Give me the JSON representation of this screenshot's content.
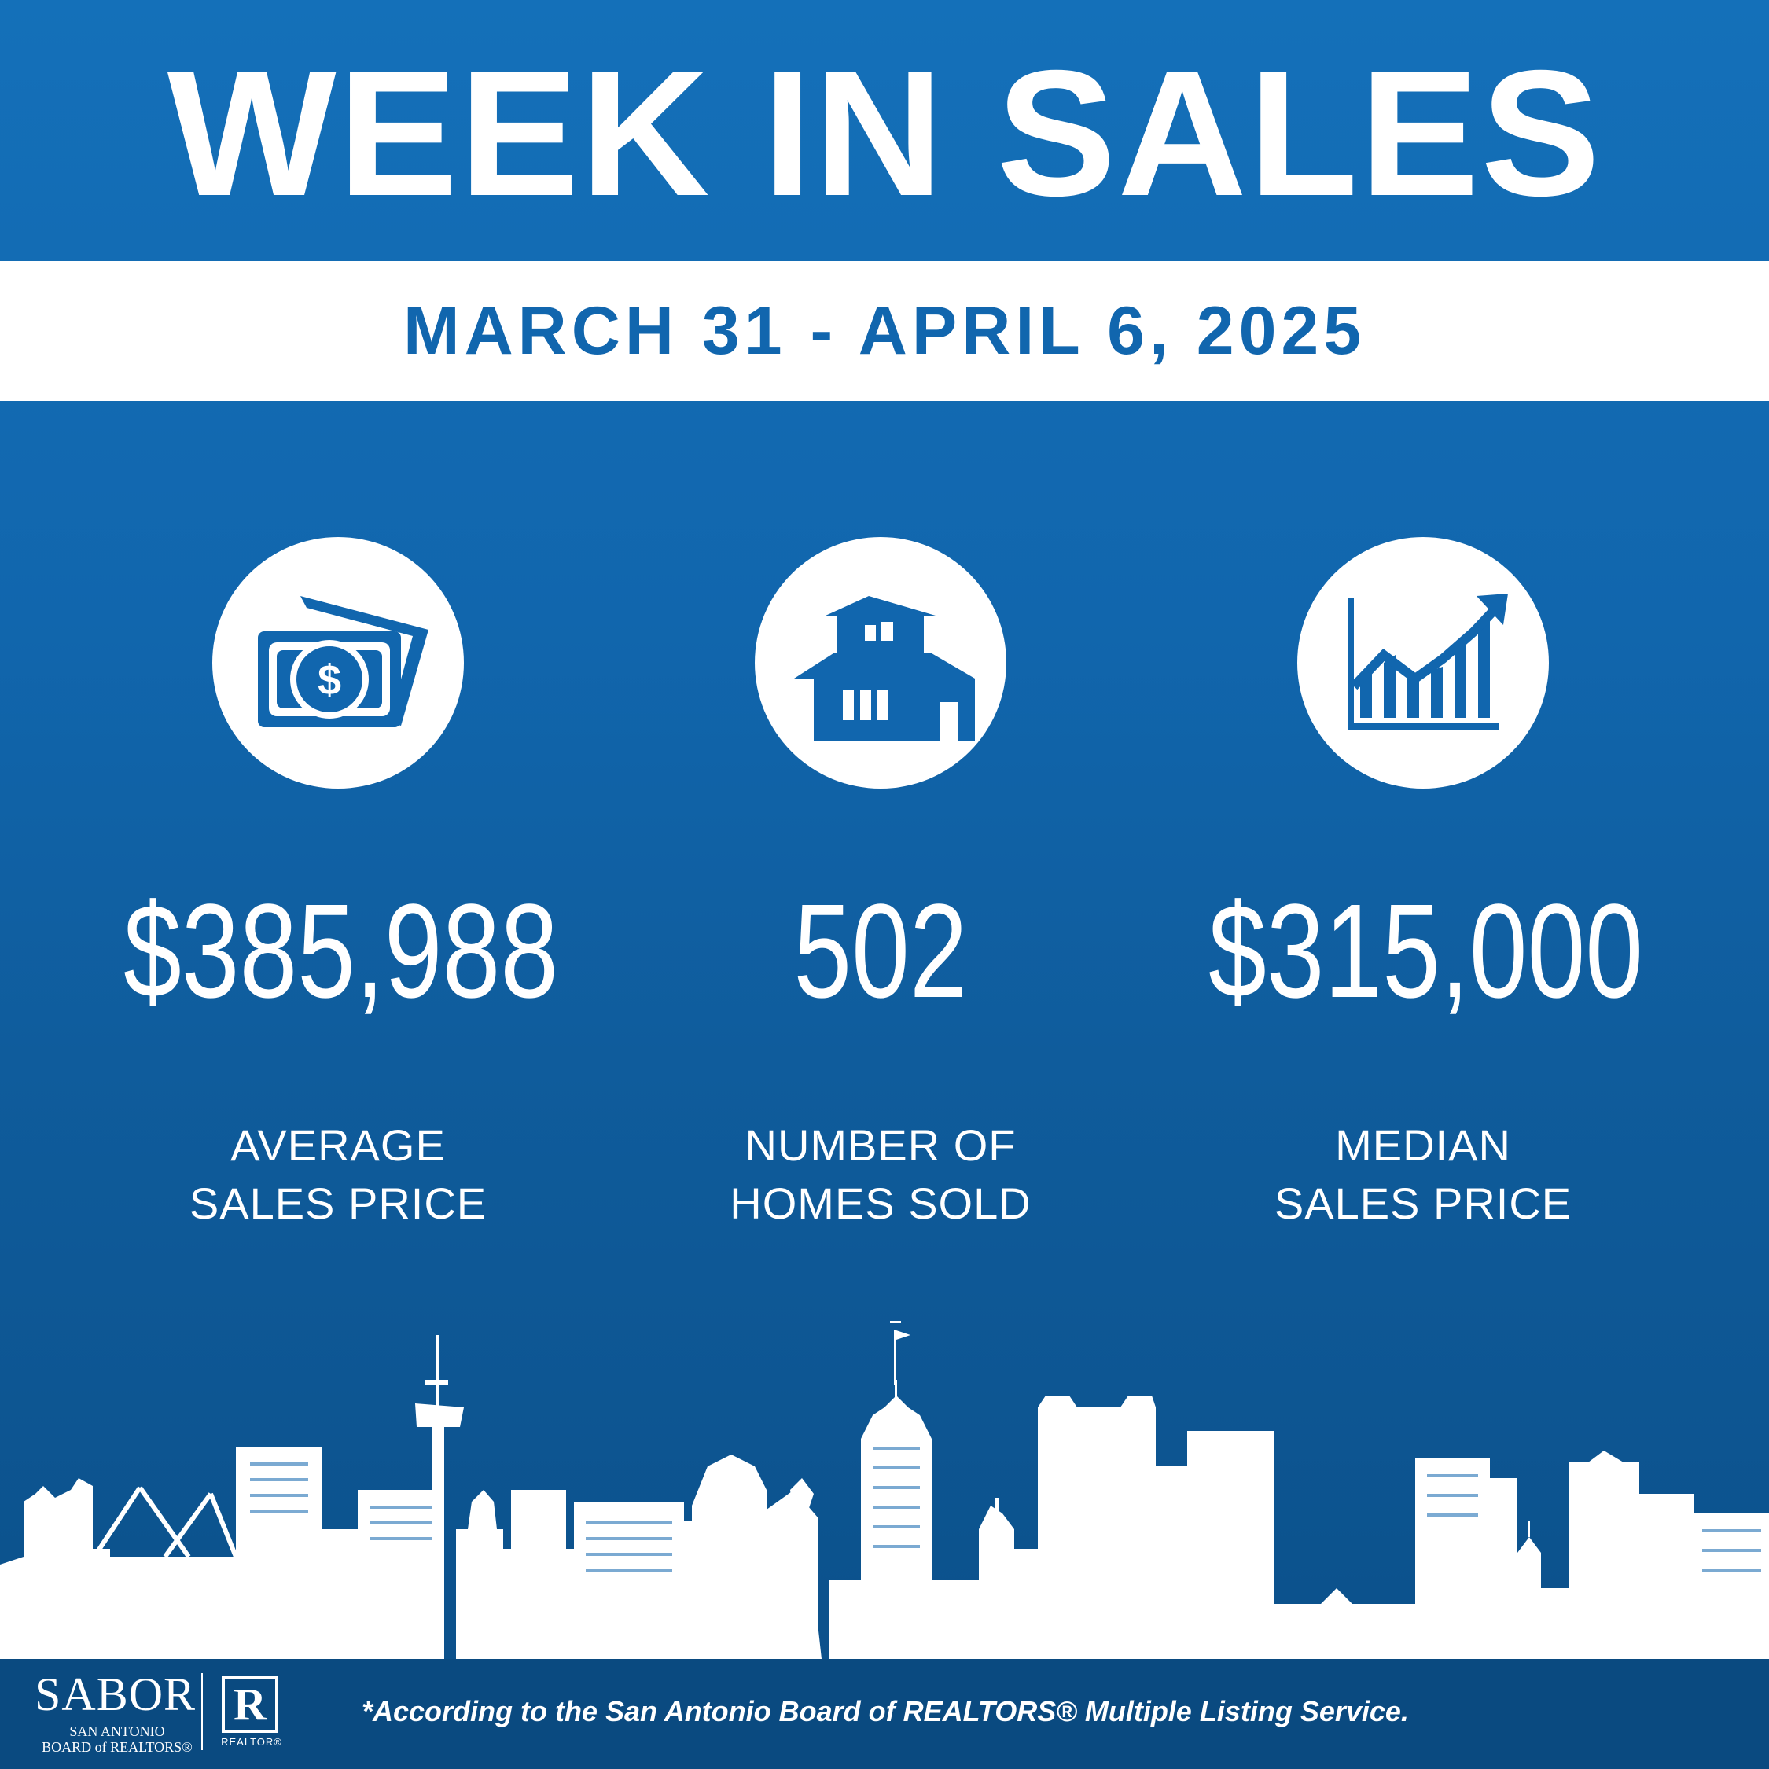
{
  "header": {
    "title": "WEEK IN SALES",
    "date_range": "MARCH 31 - APRIL 6, 2025"
  },
  "stats": [
    {
      "icon": "money-icon",
      "value": "$385,988",
      "label_line1": "AVERAGE",
      "label_line2": "SALES PRICE"
    },
    {
      "icon": "house-icon",
      "value": "502",
      "label_line1": "NUMBER OF",
      "label_line2": "HOMES SOLD"
    },
    {
      "icon": "growth-chart-icon",
      "value": "$315,000",
      "label_line1": "MEDIAN",
      "label_line2": "SALES PRICE"
    }
  ],
  "footer": {
    "logo_word": "SABOR",
    "logo_sub_line1": "SAN ANTONIO",
    "logo_sub_line2": "BOARD of REALTORS®",
    "realtor_mark": "R",
    "realtor_word": "REALTOR®",
    "disclaimer": "*According to the San Antonio Board of REALTORS® Multiple Listing Service."
  },
  "colors": {
    "brand_blue": "#1166ae",
    "footer_blue": "#0a4a80",
    "white": "#ffffff"
  }
}
